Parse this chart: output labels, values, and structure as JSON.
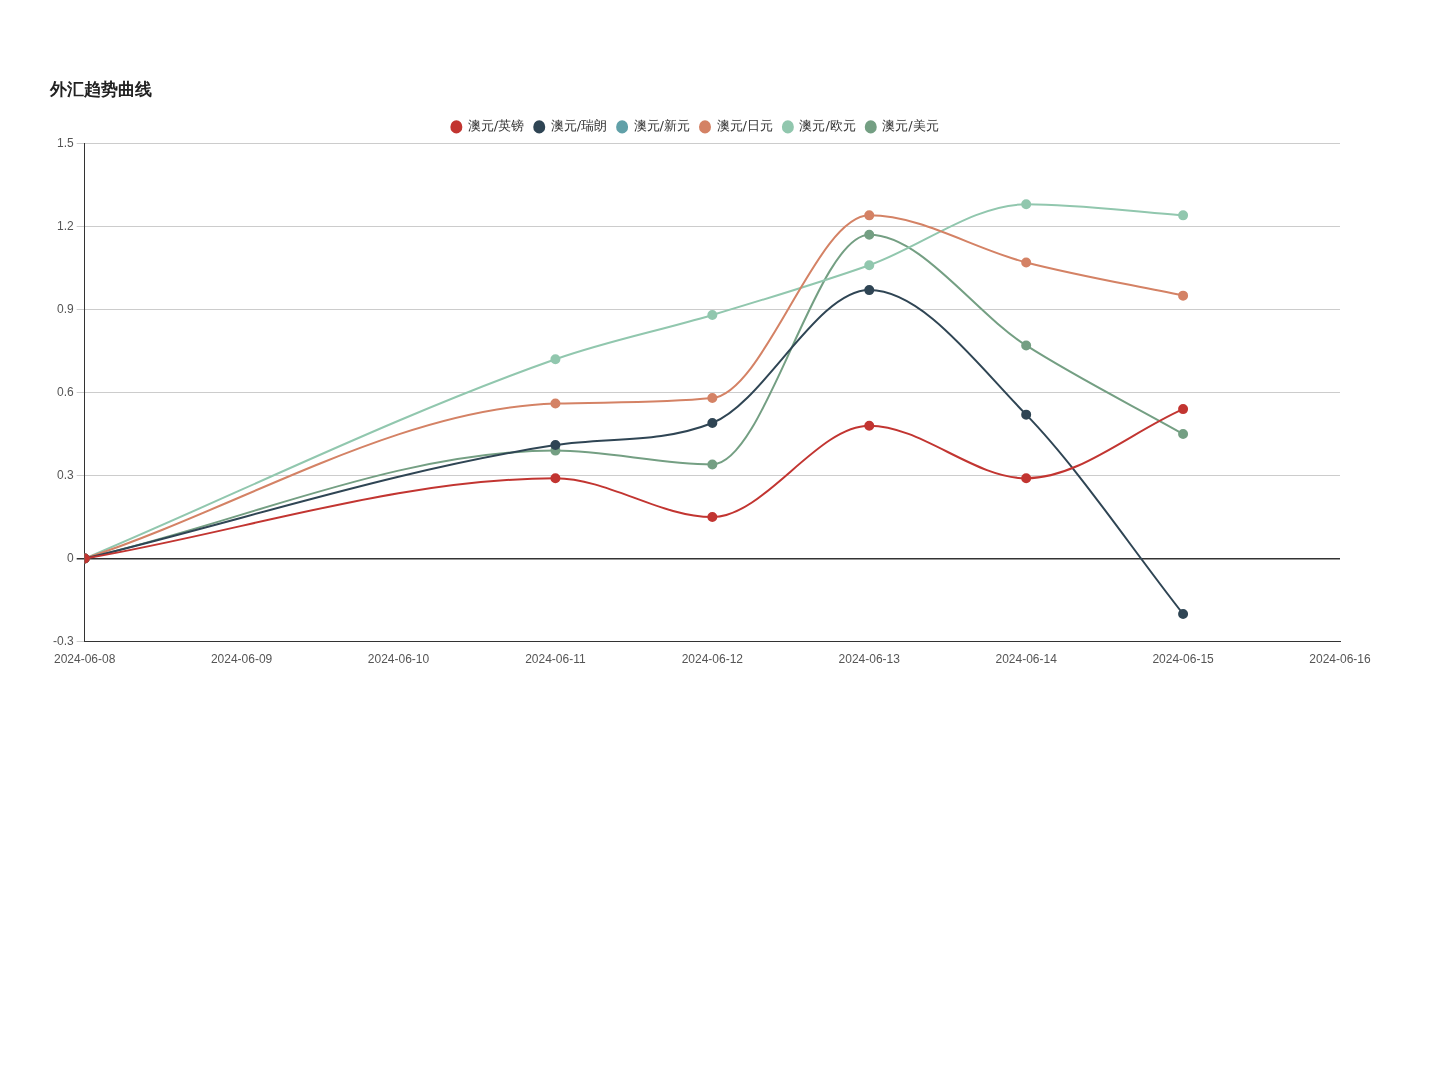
{
  "chart_data": {
    "type": "line",
    "title": "外汇趋势曲线",
    "x": [
      "2024-06-08",
      "2024-06-11",
      "2024-06-12",
      "2024-06-13",
      "2024-06-14",
      "2024-06-15"
    ],
    "series": [
      {
        "name": "澳元/英镑",
        "color": "#c23531",
        "values": [
          0,
          0.29,
          0.15,
          0.48,
          0.29,
          0.54
        ]
      },
      {
        "name": "澳元/瑞朗",
        "color": "#2f4554",
        "values": [
          0,
          0.41,
          0.49,
          0.97,
          0.52,
          -0.2
        ]
      },
      {
        "name": "澳元/新元",
        "color": "#61a0a8",
        "values": [
          null,
          null,
          null,
          null,
          null,
          null
        ]
      },
      {
        "name": "澳元/日元",
        "color": "#d48265",
        "values": [
          0,
          0.56,
          0.58,
          1.24,
          1.07,
          0.95
        ]
      },
      {
        "name": "澳元/欧元",
        "color": "#91c7ae",
        "values": [
          0,
          0.72,
          0.88,
          1.06,
          1.28,
          1.24
        ]
      },
      {
        "name": "澳元/美元",
        "color": "#749f83",
        "values": [
          0,
          0.39,
          0.34,
          1.17,
          0.77,
          0.45
        ]
      }
    ],
    "xlim": [
      "2024-06-08",
      "2024-06-16"
    ],
    "xticks": [
      "2024-06-08",
      "2024-06-09",
      "2024-06-10",
      "2024-06-11",
      "2024-06-12",
      "2024-06-13",
      "2024-06-14",
      "2024-06-15",
      "2024-06-16"
    ],
    "ylim": [
      -0.3,
      1.5
    ],
    "yticks": [
      -0.3,
      0,
      0.3,
      0.6,
      0.9,
      1.2,
      1.5
    ],
    "grid": "y",
    "legend": "top",
    "marker": "circle",
    "line_style": "solid"
  }
}
